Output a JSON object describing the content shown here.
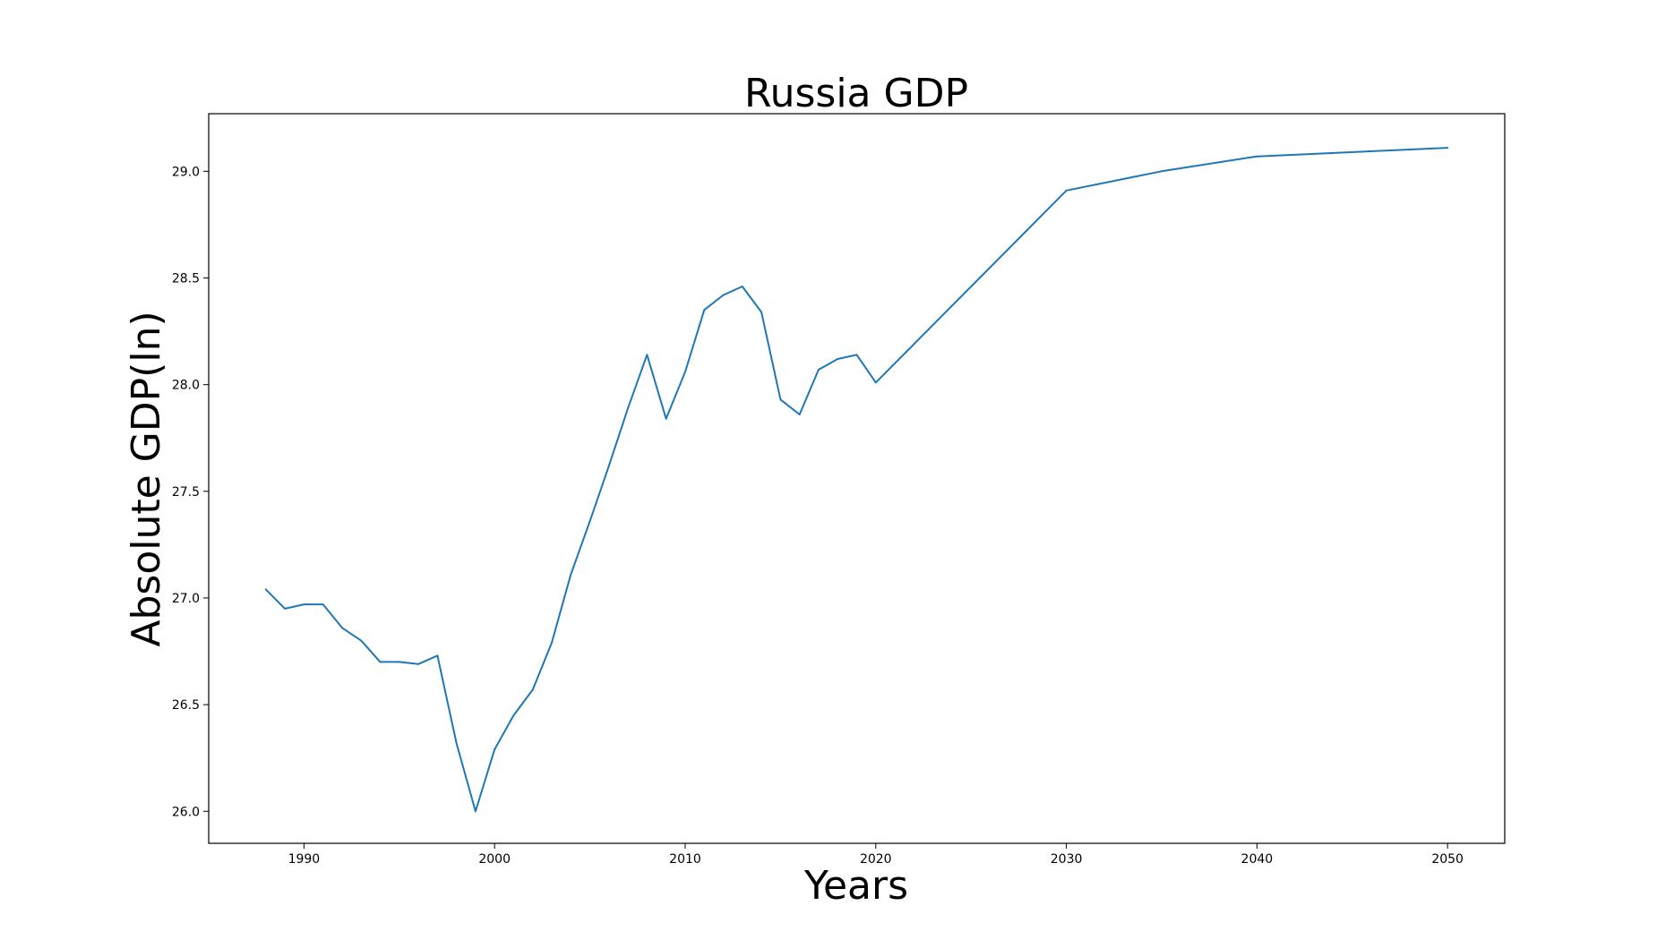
{
  "chart_data": {
    "type": "line",
    "title": "Russia GDP",
    "xlabel": "Years",
    "ylabel": "Absolute GDP(ln)",
    "xlim": [
      1985,
      2053
    ],
    "ylim": [
      25.85,
      29.27
    ],
    "xticks": [
      1990,
      2000,
      2010,
      2020,
      2030,
      2040,
      2050
    ],
    "yticks": [
      26.0,
      26.5,
      27.0,
      27.5,
      28.0,
      28.5,
      29.0
    ],
    "xtick_labels": [
      "1990",
      "2000",
      "2010",
      "2020",
      "2030",
      "2040",
      "2050"
    ],
    "ytick_labels": [
      "26.0",
      "26.5",
      "27.0",
      "27.5",
      "28.0",
      "28.5",
      "29.0"
    ],
    "grid": false,
    "series": [
      {
        "color": "#1f77b4",
        "x": [
          1988,
          1989,
          1990,
          1991,
          1992,
          1993,
          1994,
          1995,
          1996,
          1997,
          1998,
          1999,
          2000,
          2001,
          2002,
          2003,
          2004,
          2005,
          2006,
          2007,
          2008,
          2009,
          2010,
          2011,
          2012,
          2013,
          2014,
          2015,
          2016,
          2017,
          2018,
          2019,
          2020,
          2030,
          2035,
          2040,
          2050
        ],
        "y": [
          27.04,
          26.95,
          26.97,
          26.97,
          26.86,
          26.8,
          26.7,
          26.7,
          26.69,
          26.73,
          26.32,
          26.0,
          26.29,
          26.45,
          26.57,
          26.79,
          27.11,
          27.36,
          27.62,
          27.89,
          28.14,
          27.84,
          28.06,
          28.35,
          28.42,
          28.46,
          28.34,
          27.93,
          27.86,
          28.07,
          28.12,
          28.14,
          28.01,
          28.91,
          29.0,
          29.07,
          29.11
        ]
      }
    ]
  }
}
